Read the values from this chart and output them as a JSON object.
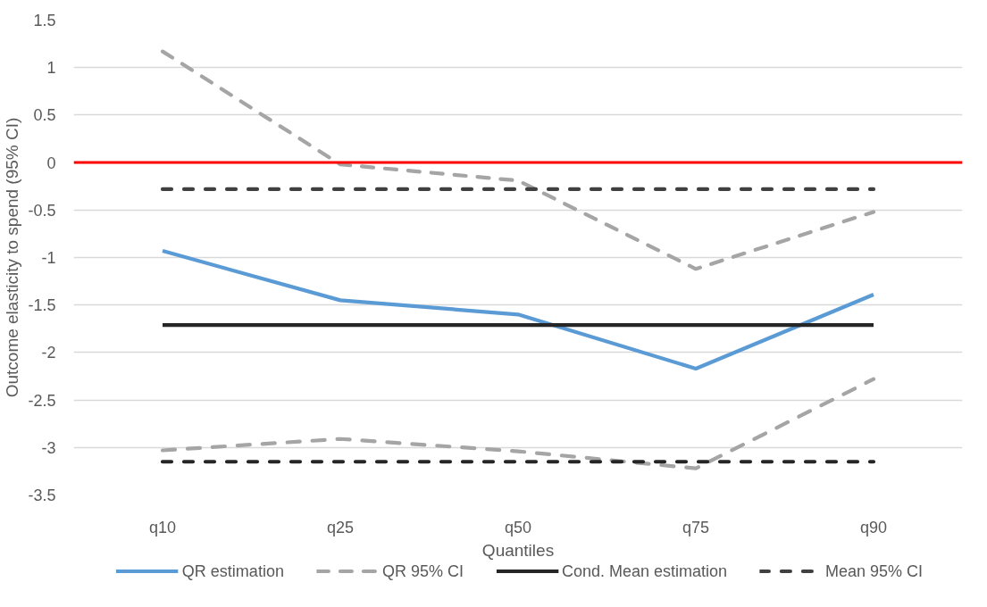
{
  "chart_data": {
    "type": "line",
    "xlabel": "Quantiles",
    "ylabel": "Outcome elasticity to spend (95% CI)",
    "categories": [
      "q10",
      "q25",
      "q50",
      "q75",
      "q90"
    ],
    "series": [
      {
        "name": "QR estimation",
        "color": "#5b9bd5",
        "line_style": "solid",
        "values": [
          -0.93,
          -1.45,
          -1.6,
          -2.17,
          -1.39
        ]
      },
      {
        "name": "QR 95% CI",
        "color": "#a5a5a5",
        "line_style": "dashed",
        "values": [
          1.17,
          -0.02,
          -0.19,
          -1.12,
          -0.52
        ]
      },
      {
        "color": "#a5a5a5",
        "line_style": "dashed",
        "values": [
          -3.03,
          -2.91,
          -3.04,
          -3.22,
          -2.28
        ]
      },
      {
        "name": "Cond. Mean estimation",
        "color": "#262626",
        "line_style": "solid",
        "values": [
          -1.71,
          -1.71,
          -1.71,
          -1.71,
          -1.71
        ]
      },
      {
        "name": "Mean 95% CI",
        "color": "#404040",
        "line_style": "dashed",
        "values": [
          -0.28,
          -0.28,
          -0.28,
          -0.28,
          -0.28
        ]
      },
      {
        "color": "#262626",
        "line_style": "dashed",
        "values": [
          -3.15,
          -3.15,
          -3.15,
          -3.15,
          -3.15
        ]
      }
    ],
    "ylim": [
      -3.5,
      1.5
    ],
    "yticks": [
      -3.5,
      -3,
      -2.5,
      -2,
      -1.5,
      -1,
      -0.5,
      0,
      0.5,
      1,
      1.5
    ],
    "ref_lines": [
      {
        "axis": "y",
        "value": 0,
        "color": "#ff0000"
      }
    ],
    "grid": "y",
    "legend": "bottom"
  }
}
